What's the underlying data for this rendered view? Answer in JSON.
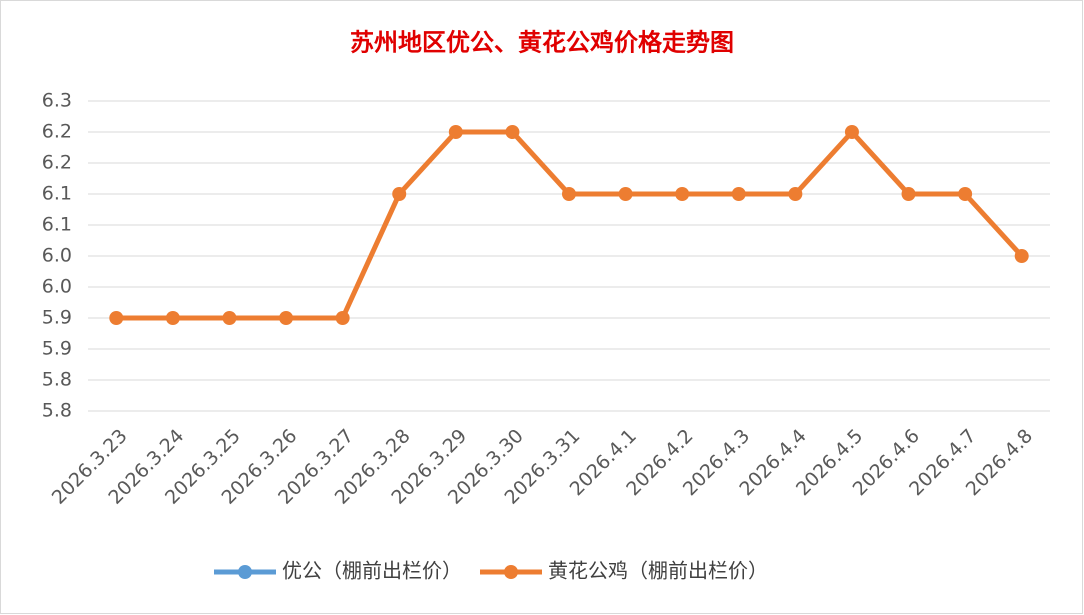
{
  "chart_data": {
    "type": "line",
    "title": "苏州地区优公、黄花公鸡价格走势图",
    "categories": [
      "2026.3.23",
      "2026.3.24",
      "2026.3.25",
      "2026.3.26",
      "2026.3.27",
      "2026.3.28",
      "2026.3.29",
      "2026.3.30",
      "2026.3.31",
      "2026.4.1",
      "2026.4.2",
      "2026.4.3",
      "2026.4.4",
      "2026.4.5",
      "2026.4.6",
      "2026.4.7",
      "2026.4.8"
    ],
    "series": [
      {
        "name": "优公（棚前出栏价）",
        "color": "#5b9bd5",
        "values": [
          null,
          null,
          null,
          null,
          null,
          null,
          null,
          null,
          null,
          null,
          null,
          null,
          null,
          null,
          null,
          null,
          null
        ]
      },
      {
        "name": "黄花公鸡（棚前出栏价）",
        "color": "#ed7d31",
        "values": [
          5.9,
          5.9,
          5.9,
          5.9,
          5.9,
          6.1,
          6.2,
          6.2,
          6.1,
          6.1,
          6.1,
          6.1,
          6.1,
          6.2,
          6.1,
          6.1,
          6.0
        ]
      }
    ],
    "ylim": [
      5.75,
      6.25
    ],
    "yticks": [
      {
        "value": 5.75,
        "label": "5.8"
      },
      5.8,
      {
        "value": 5.85,
        "label": "5.9"
      },
      5.9,
      {
        "value": 5.95,
        "label": "6.0"
      },
      {
        "value": 6,
        "label": "6.0"
      },
      {
        "value": 6.05,
        "label": "6.1"
      },
      6.1,
      {
        "value": 6.15,
        "label": "6.2"
      },
      6.2,
      {
        "value": 6.25,
        "label": "6.3"
      }
    ],
    "grid": true,
    "legend": "bottom"
  }
}
